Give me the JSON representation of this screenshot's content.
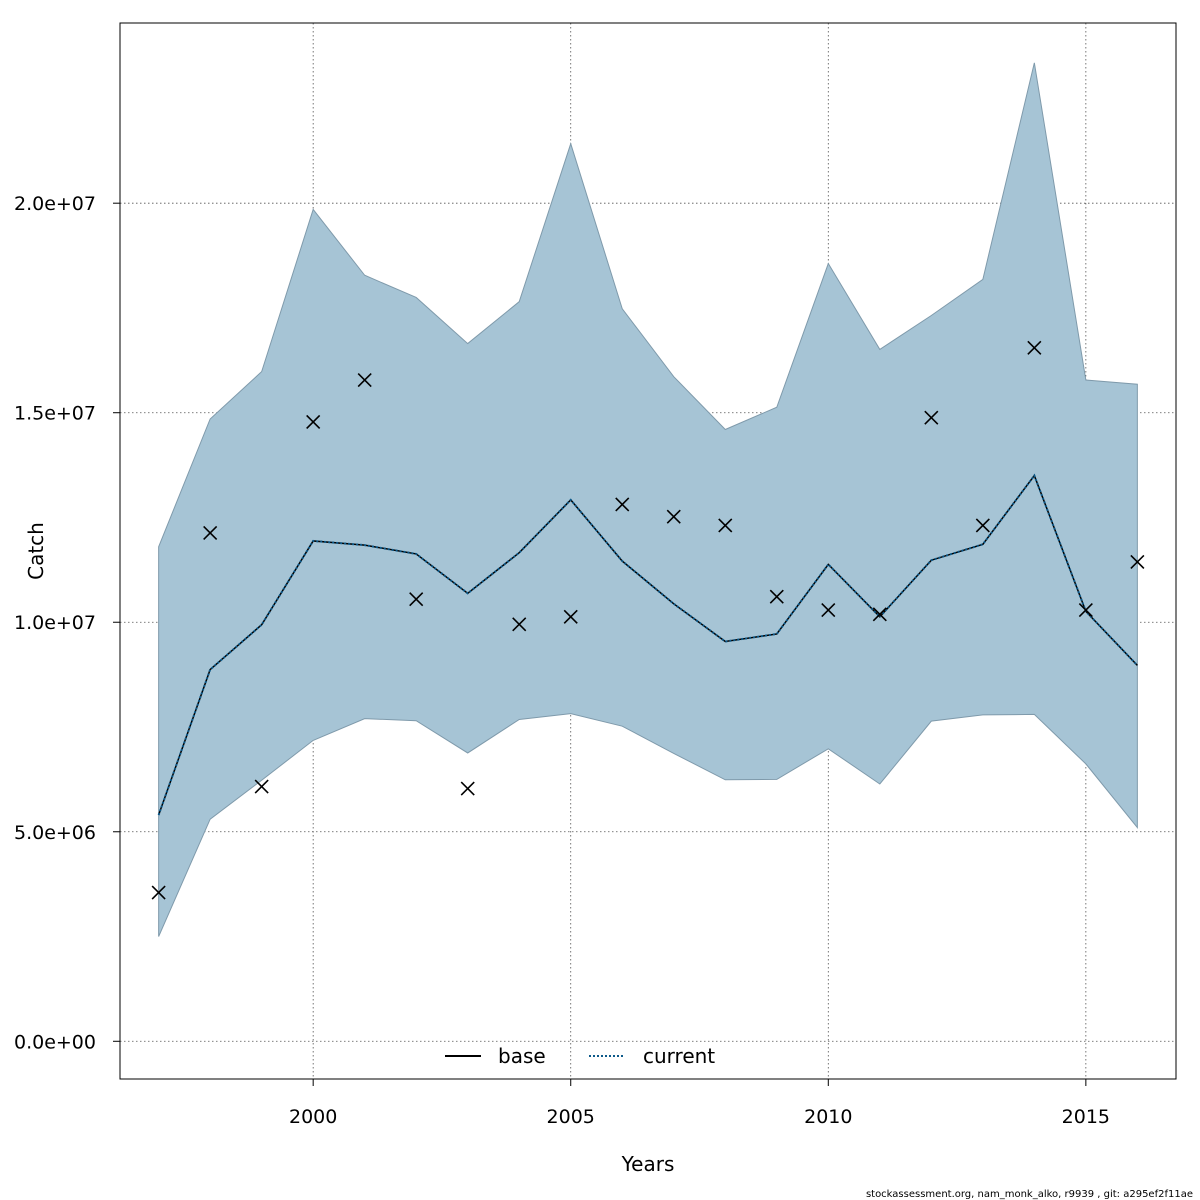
{
  "chart_data": {
    "type": "line",
    "xlabel": "Years",
    "ylabel": "Catch",
    "xlim": [
      1996.25,
      2016.75
    ],
    "ylim": [
      -900000,
      24300000
    ],
    "x_ticks": [
      2000,
      2005,
      2010,
      2015
    ],
    "x_tick_labels": [
      "2000",
      "2005",
      "2010",
      "2015"
    ],
    "y_ticks": [
      0,
      5000000,
      10000000,
      15000000,
      20000000
    ],
    "y_tick_labels": [
      "0.0e+00",
      "5.0e+06",
      "1.0e+07",
      "1.5e+07",
      "2.0e+07"
    ],
    "grid": true,
    "x": [
      1997,
      1998,
      1999,
      2000,
      2001,
      2002,
      2003,
      2004,
      2005,
      2006,
      2007,
      2008,
      2009,
      2010,
      2011,
      2012,
      2013,
      2014,
      2015,
      2016
    ],
    "band": {
      "color": "#a6c4d5",
      "upper": [
        11800000,
        14850000,
        15980000,
        19850000,
        18280000,
        17750000,
        16650000,
        17650000,
        21420000,
        17480000,
        15860000,
        14600000,
        15130000,
        18560000,
        16510000,
        17320000,
        18180000,
        23350000,
        15780000,
        15680000
      ],
      "lower": [
        2500000,
        5300000,
        6230000,
        7180000,
        7700000,
        7650000,
        6880000,
        7680000,
        7820000,
        7520000,
        6870000,
        6240000,
        6250000,
        6980000,
        6140000,
        7640000,
        7790000,
        7800000,
        6620000,
        5100000
      ]
    },
    "series": [
      {
        "name": "base",
        "color": "#000000",
        "dash": "solid",
        "values": [
          5400000,
          8870000,
          9940000,
          11940000,
          11840000,
          11630000,
          10690000,
          11660000,
          12920000,
          11460000,
          10440000,
          9540000,
          9720000,
          11380000,
          10130000,
          11480000,
          11860000,
          13500000,
          10260000,
          8970000
        ]
      },
      {
        "name": "current",
        "color": "#0d5a8a",
        "dash": "dotted",
        "values": [
          5400000,
          8870000,
          9940000,
          11940000,
          11840000,
          11630000,
          10690000,
          11660000,
          12920000,
          11460000,
          10440000,
          9540000,
          9720000,
          11380000,
          10130000,
          11480000,
          11860000,
          13500000,
          10260000,
          8970000
        ]
      }
    ],
    "observed": {
      "marker": "x",
      "values": [
        3550000,
        12130000,
        6080000,
        14780000,
        15780000,
        10550000,
        6030000,
        9950000,
        10130000,
        12810000,
        12520000,
        12310000,
        10610000,
        10290000,
        10190000,
        14880000,
        12310000,
        16550000,
        10290000,
        11440000
      ]
    },
    "legend": {
      "placement": "bottom-center",
      "entries": [
        "base",
        "current"
      ]
    }
  },
  "footer": "stockassessment.org, nam_monk_alko, r9939 , git: a295ef2f11ae"
}
